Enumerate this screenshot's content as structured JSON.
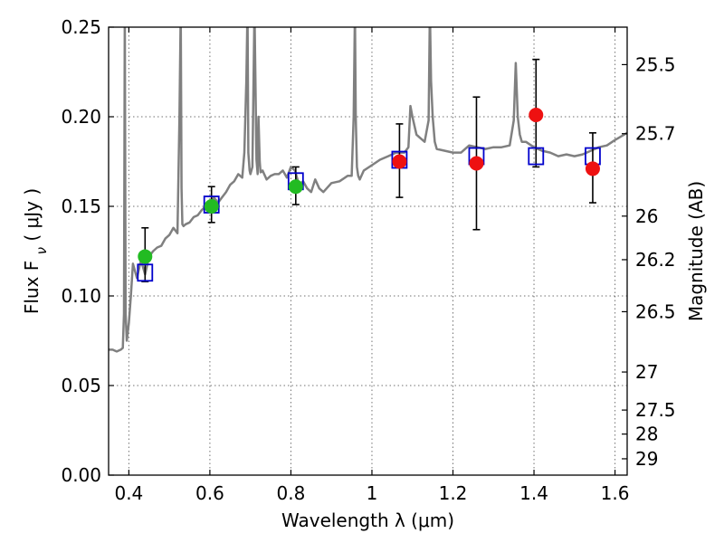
{
  "chart_data": {
    "type": "scatter",
    "title": "",
    "xlabel": "Wavelength  λ (μm)",
    "ylabel": "Flux  F",
    "ylabel_subscript": "ν",
    "ylabel_unit": "( μJy )",
    "y2label": "Magnitude (AB)",
    "xlim": [
      0.35,
      1.63
    ],
    "ylim": [
      0,
      0.25
    ],
    "grid": true,
    "x_ticks": [
      0.4,
      0.6,
      0.8,
      1.0,
      1.2,
      1.4,
      1.6
    ],
    "x_tick_labels": [
      "0.4",
      "0.6",
      "0.8",
      "1",
      "1.2",
      "1.4",
      "1.6"
    ],
    "y_ticks": [
      0.0,
      0.05,
      0.1,
      0.15,
      0.2,
      0.25
    ],
    "y_tick_labels": [
      "0.00",
      "0.05",
      "0.10",
      "0.15",
      "0.20",
      "0.25"
    ],
    "y2_ticks": [
      25.5,
      25.7,
      26,
      26.2,
      26.5,
      27,
      27.5,
      28,
      29
    ],
    "y2_tick_labels": [
      "25.5",
      "25.7",
      "26",
      "26.2",
      "26.5",
      "27",
      "27.5",
      "28",
      "29"
    ],
    "colors": {
      "spectrum": "#808080",
      "model_box": "#0000cc",
      "optical": "#22bb22",
      "nir": "#ee1111",
      "errorbar": "#000000"
    },
    "spectrum": {
      "name": "",
      "x": [
        0.35,
        0.36,
        0.37,
        0.38,
        0.385,
        0.388,
        0.39,
        0.392,
        0.395,
        0.4,
        0.405,
        0.41,
        0.42,
        0.43,
        0.44,
        0.45,
        0.46,
        0.47,
        0.48,
        0.49,
        0.5,
        0.51,
        0.52,
        0.525,
        0.528,
        0.53,
        0.532,
        0.535,
        0.54,
        0.55,
        0.56,
        0.57,
        0.58,
        0.59,
        0.6,
        0.61,
        0.62,
        0.63,
        0.64,
        0.65,
        0.66,
        0.67,
        0.68,
        0.685,
        0.69,
        0.693,
        0.695,
        0.698,
        0.7,
        0.705,
        0.71,
        0.715,
        0.718,
        0.72,
        0.723,
        0.725,
        0.73,
        0.74,
        0.75,
        0.76,
        0.77,
        0.78,
        0.79,
        0.8,
        0.81,
        0.82,
        0.83,
        0.84,
        0.85,
        0.86,
        0.87,
        0.88,
        0.9,
        0.92,
        0.94,
        0.95,
        0.955,
        0.958,
        0.96,
        0.963,
        0.966,
        0.97,
        0.98,
        1.0,
        1.02,
        1.04,
        1.06,
        1.08,
        1.09,
        1.095,
        1.1,
        1.11,
        1.12,
        1.13,
        1.14,
        1.143,
        1.146,
        1.15,
        1.155,
        1.16,
        1.18,
        1.2,
        1.22,
        1.24,
        1.26,
        1.28,
        1.3,
        1.32,
        1.34,
        1.35,
        1.355,
        1.36,
        1.365,
        1.37,
        1.38,
        1.4,
        1.42,
        1.44,
        1.46,
        1.48,
        1.5,
        1.52,
        1.54,
        1.56,
        1.58,
        1.6,
        1.63
      ],
      "y": [
        0.07,
        0.07,
        0.069,
        0.07,
        0.071,
        0.09,
        0.26,
        0.09,
        0.075,
        0.085,
        0.1,
        0.118,
        0.11,
        0.12,
        0.112,
        0.122,
        0.125,
        0.127,
        0.128,
        0.132,
        0.134,
        0.138,
        0.135,
        0.2,
        0.26,
        0.16,
        0.14,
        0.139,
        0.14,
        0.141,
        0.144,
        0.145,
        0.148,
        0.15,
        0.151,
        0.155,
        0.152,
        0.155,
        0.158,
        0.162,
        0.164,
        0.168,
        0.166,
        0.18,
        0.22,
        0.26,
        0.18,
        0.17,
        0.168,
        0.172,
        0.26,
        0.176,
        0.168,
        0.2,
        0.175,
        0.169,
        0.17,
        0.165,
        0.167,
        0.168,
        0.168,
        0.17,
        0.166,
        0.172,
        0.17,
        0.162,
        0.164,
        0.16,
        0.158,
        0.165,
        0.16,
        0.158,
        0.163,
        0.164,
        0.167,
        0.167,
        0.2,
        0.26,
        0.2,
        0.172,
        0.167,
        0.165,
        0.17,
        0.173,
        0.176,
        0.178,
        0.18,
        0.18,
        0.183,
        0.206,
        0.2,
        0.19,
        0.188,
        0.186,
        0.198,
        0.26,
        0.22,
        0.2,
        0.186,
        0.182,
        0.181,
        0.18,
        0.18,
        0.184,
        0.183,
        0.182,
        0.183,
        0.183,
        0.184,
        0.198,
        0.23,
        0.2,
        0.19,
        0.186,
        0.186,
        0.183,
        0.181,
        0.18,
        0.178,
        0.179,
        0.178,
        0.179,
        0.181,
        0.183,
        0.184,
        0.187,
        0.191
      ]
    },
    "model_boxes": {
      "name": "",
      "x": [
        0.44,
        0.604,
        0.812,
        1.068,
        1.258,
        1.405,
        1.545
      ],
      "y": [
        0.113,
        0.151,
        0.164,
        0.176,
        0.178,
        0.178,
        0.178
      ]
    },
    "observed": [
      {
        "name": "",
        "band": "optical",
        "x": [
          0.44,
          0.604,
          0.812
        ],
        "y": [
          0.122,
          0.15,
          0.161
        ],
        "yerr_low": [
          0.014,
          0.009,
          0.01
        ],
        "yerr_high": [
          0.016,
          0.011,
          0.011
        ]
      },
      {
        "name": "",
        "band": "nir",
        "x": [
          1.068,
          1.258,
          1.405,
          1.545
        ],
        "y": [
          0.175,
          0.174,
          0.201,
          0.171
        ],
        "yerr_low": [
          0.02,
          0.037,
          0.029,
          0.019
        ],
        "yerr_high": [
          0.021,
          0.037,
          0.031,
          0.02
        ]
      }
    ]
  }
}
